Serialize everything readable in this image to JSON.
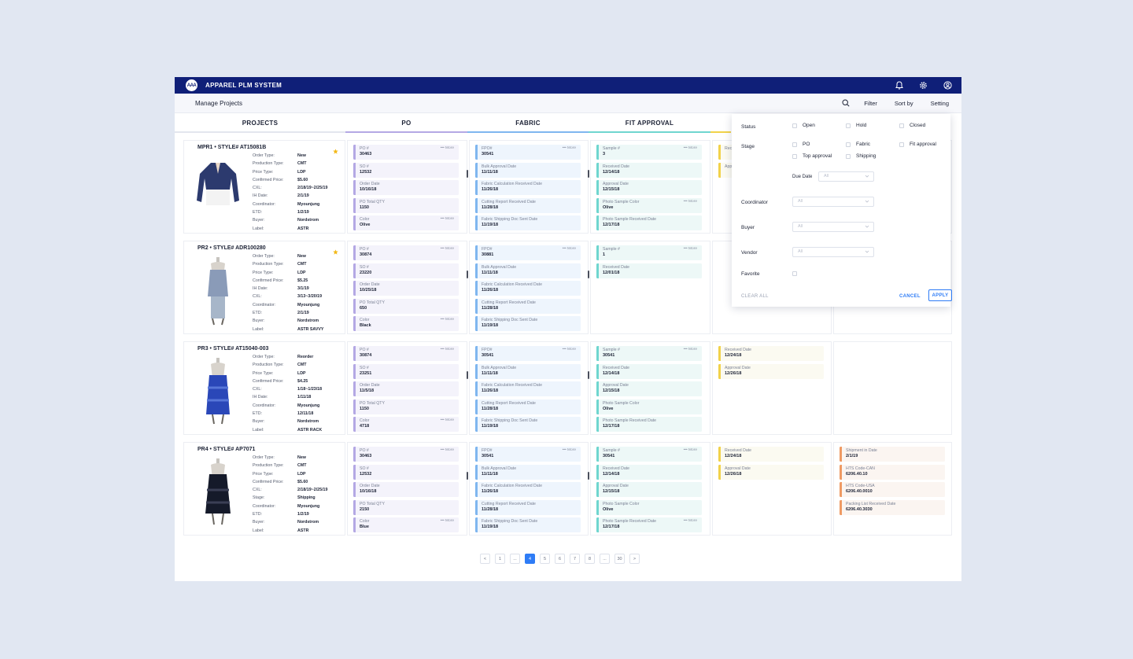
{
  "app": {
    "logo_text": "AAA",
    "title": "APPAREL PLM SYSTEM"
  },
  "subbar": {
    "breadcrumb": "Manage Projects",
    "filter": "Filter",
    "sort": "Sort by",
    "setting": "Setting"
  },
  "columns": [
    "PROJECTS",
    "PO",
    "FABRIC",
    "FIT APPROVAL"
  ],
  "colors": {
    "po": "#b4a8e4",
    "fabric": "#7fb6ef",
    "fit": "#6fd6cf",
    "top": "#f1d24a",
    "ship": "#ef9a63",
    "accent": "#2e7cf6",
    "brand": "#0f1f78"
  },
  "more_label": "••• More",
  "projects": [
    {
      "title": "MPR1 • STYLE# AT15081B",
      "fields": [
        [
          "Order Type:",
          "New"
        ],
        [
          "Production Type:",
          "CMT"
        ],
        [
          "Price Type:",
          "LDP"
        ],
        [
          "Confirmed Price:",
          "$5.60"
        ],
        [
          "CXL:",
          "2/18/19~2/25/19"
        ],
        [
          "IH Date:",
          "2/1/19"
        ],
        [
          "Coordinator:",
          "Myounjung"
        ],
        [
          "ETD:",
          "1/2/19"
        ],
        [
          "Buyer:",
          "Nordstrom"
        ],
        [
          "Label:",
          "ASTR"
        ]
      ],
      "po": [
        [
          "PO #",
          "30463"
        ],
        [
          "SO #",
          "12532"
        ],
        [
          "Order Date",
          "10/16/18"
        ],
        [
          "PO Total QTY",
          "1150"
        ],
        [
          "Color",
          "Olive"
        ]
      ],
      "fabric": [
        [
          "FPO#",
          "30541"
        ],
        [
          "Bulk Approval Date",
          "11/11/18"
        ],
        [
          "Fabric Calculation Received Date",
          "11/26/18"
        ],
        [
          "Cutting Report Received Date",
          "11/28/18"
        ],
        [
          "Fabric Shipping Doc Sent Date",
          "11/19/18"
        ]
      ],
      "fit": [
        [
          "Sample #",
          "3"
        ],
        [
          "Received Date",
          "12/14/18"
        ],
        [
          "Approval Date",
          "12/15/18"
        ],
        [
          "Photo Sample Color",
          "Olive"
        ],
        [
          "Photo Sample Received Date",
          "12/17/18"
        ]
      ],
      "top": [
        [
          "Received Date",
          ""
        ],
        [
          "Approval Date",
          ""
        ]
      ],
      "ship": []
    },
    {
      "title": "PR2 • STYLE# ADR100280",
      "fields": [
        [
          "Order Type:",
          "New"
        ],
        [
          "Production Type:",
          "CMT"
        ],
        [
          "Price Type:",
          "LDP"
        ],
        [
          "Confirmed Price:",
          "$5.25"
        ],
        [
          "IH Date:",
          "3/1/19"
        ],
        [
          "CXL:",
          "3/13~3/20/19"
        ],
        [
          "Coordinator:",
          "Myounjung"
        ],
        [
          "ETD:",
          "2/1/19"
        ],
        [
          "Buyer:",
          "Nordstrom"
        ],
        [
          "Label:",
          "ASTR SAVVY"
        ]
      ],
      "po": [
        [
          "PO #",
          "30874"
        ],
        [
          "SO #",
          "23220"
        ],
        [
          "Order Date",
          "10/25/18"
        ],
        [
          "PO Total QTY",
          "650"
        ],
        [
          "Color",
          "Black"
        ]
      ],
      "fabric": [
        [
          "FPO#",
          "30881"
        ],
        [
          "Bulk Approval Date",
          "11/11/18"
        ],
        [
          "Fabric Calculation Received Date",
          "11/26/18"
        ],
        [
          "Cutting Report Received Date",
          "11/28/18"
        ],
        [
          "Fabric Shipping Doc Sent Date",
          "11/19/18"
        ]
      ],
      "fit": [
        [
          "Sample #",
          "1"
        ],
        [
          "Received Date",
          "12/01/18"
        ]
      ],
      "top": [],
      "ship": []
    },
    {
      "title": "PR3 • STYLE# AT15040-003",
      "fields": [
        [
          "Order Type:",
          "Reorder"
        ],
        [
          "Production Type:",
          "CMT"
        ],
        [
          "Price Type:",
          "LDP"
        ],
        [
          "Confirmed Price:",
          "$4.25"
        ],
        [
          "CXL:",
          "1/18~1/23/18"
        ],
        [
          "IH Date:",
          "1/11/18"
        ],
        [
          "Coordinator:",
          "Myounjung"
        ],
        [
          "ETD:",
          "12/11/18"
        ],
        [
          "Buyer:",
          "Nordstrom"
        ],
        [
          "Label:",
          "ASTR RACK"
        ]
      ],
      "po": [
        [
          "PO #",
          "30874"
        ],
        [
          "SO #",
          "23251"
        ],
        [
          "Order Date",
          "11/5/18"
        ],
        [
          "PO Total QTY",
          "1150"
        ],
        [
          "Color",
          "4718"
        ]
      ],
      "fabric": [
        [
          "FPO#",
          "30541"
        ],
        [
          "Bulk Approval Date",
          "11/11/18"
        ],
        [
          "Fabric Calculation Received Date",
          "11/26/18"
        ],
        [
          "Cutting Report Received Date",
          "11/28/18"
        ],
        [
          "Fabric Shipping Doc Sent Date",
          "11/19/18"
        ]
      ],
      "fit": [
        [
          "Sample #",
          "30541"
        ],
        [
          "Received Date",
          "12/14/18"
        ],
        [
          "Approval Date",
          "12/15/18"
        ],
        [
          "Photo Sample Color",
          "Olive"
        ],
        [
          "Photo Sample Received Date",
          "12/17/18"
        ]
      ],
      "top": [
        [
          "Received Date",
          "12/24/18"
        ],
        [
          "Approval Date",
          "12/26/18"
        ]
      ],
      "ship": []
    },
    {
      "title": "PR4 • STYLE# AP7071",
      "fields": [
        [
          "Order Type:",
          "New"
        ],
        [
          "Production Type:",
          "CMT"
        ],
        [
          "Price Type:",
          "LDP"
        ],
        [
          "Confirmed Price:",
          "$5.60"
        ],
        [
          "CXL:",
          "2/18/19~2/25/19"
        ],
        [
          "Stage:",
          "Shipping"
        ],
        [
          "Coordinator:",
          "Myounjung"
        ],
        [
          "ETD:",
          "1/2/19"
        ],
        [
          "Buyer:",
          "Nordstrom"
        ],
        [
          "Label:",
          "ASTR"
        ]
      ],
      "po": [
        [
          "PO #",
          "30463"
        ],
        [
          "SO #",
          "12532"
        ],
        [
          "Order Date",
          "10/16/18"
        ],
        [
          "PO Total QTY",
          "2150"
        ],
        [
          "Color",
          "Blue"
        ]
      ],
      "fabric": [
        [
          "FPO#",
          "30541"
        ],
        [
          "Bulk Approval Date",
          "11/11/18"
        ],
        [
          "Fabric Calculation Received Date",
          "11/26/18"
        ],
        [
          "Cutting Report Received Date",
          "11/28/18"
        ],
        [
          "Fabric Shipping Doc Sent Date",
          "11/19/18"
        ]
      ],
      "fit": [
        [
          "Sample #",
          "30541"
        ],
        [
          "Received Date",
          "12/14/18"
        ],
        [
          "Approval Date",
          "12/15/18"
        ],
        [
          "Photo Sample Color",
          "Olive"
        ],
        [
          "Photo Sample Received Date",
          "12/17/18"
        ]
      ],
      "top": [
        [
          "Received Date",
          "12/24/18"
        ],
        [
          "Approval Date",
          "12/26/18"
        ]
      ],
      "ship": [
        [
          "Shipment in Date",
          "2/1/19"
        ],
        [
          "HTS Code-CAN",
          "6206.40.10"
        ],
        [
          "HTS Code-USA",
          "6206.40.0010"
        ],
        [
          "Packing List Received Date",
          "6206.40.3030"
        ]
      ]
    }
  ],
  "pagination": [
    "<",
    "1",
    "...",
    "4",
    "5",
    "6",
    "7",
    "8",
    "...",
    "30",
    ">"
  ],
  "pagination_active": "4",
  "filter": {
    "status_label": "Status",
    "status_options": [
      "Open",
      "Hold",
      "Closed"
    ],
    "stage_label": "Stage",
    "stage_options": [
      "PO",
      "Fabric",
      "Fit approval",
      "Top approval",
      "Shipping"
    ],
    "due_date_label": "Due Date",
    "due_date_value": "All",
    "coordinator_label": "Coordinator",
    "coordinator_value": "All",
    "buyer_label": "Buyer",
    "buyer_value": "All",
    "vendor_label": "Vendor",
    "vendor_value": "All",
    "favorite_label": "Favorite",
    "clear_all": "CLEAR ALL",
    "cancel": "CANCEL",
    "apply": "APPLY"
  }
}
